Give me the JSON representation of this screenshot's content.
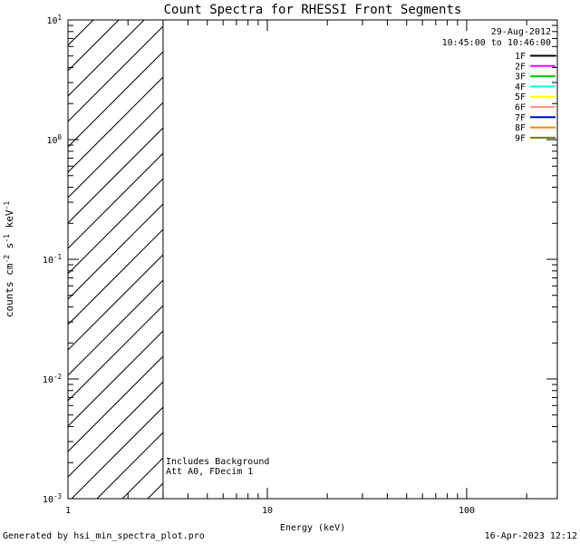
{
  "header": {
    "date": "29-Aug-2012",
    "interval": "10:45:00 to 10:46:00"
  },
  "footer": {
    "left": "Generated by hsi_min_spectra_plot.pro",
    "right": "16-Apr-2023 12:12"
  },
  "chart_data": {
    "type": "line",
    "title": "Count Spectra for RHESSI Front Segments",
    "xlabel": "Energy (keV)",
    "ylabel": "counts cm^-2 s^-1 keV^-1",
    "ylabel_segments": [
      {
        "t": "counts cm",
        "sup": false
      },
      {
        "t": "-2",
        "sup": true
      },
      {
        "t": " s",
        "sup": false
      },
      {
        "t": "-1",
        "sup": true
      },
      {
        "t": " keV",
        "sup": false
      },
      {
        "t": "-1",
        "sup": true
      }
    ],
    "x_log": true,
    "y_log": true,
    "xlim": [
      1,
      285
    ],
    "ylim": [
      0.001,
      10
    ],
    "grid": false,
    "x_major_ticks": [
      1,
      10,
      100
    ],
    "x_tick_labels": [
      "1",
      "10",
      "100"
    ],
    "y_tick_exponents": [
      1,
      0,
      -1,
      -2,
      -3
    ],
    "legend_position": "top-right",
    "series": [
      {
        "name": "1F",
        "color": "#000000",
        "values": []
      },
      {
        "name": "2F",
        "color": "#ff00ff",
        "values": []
      },
      {
        "name": "3F",
        "color": "#00cc00",
        "values": []
      },
      {
        "name": "4F",
        "color": "#00ffff",
        "values": []
      },
      {
        "name": "5F",
        "color": "#ffff00",
        "values": []
      },
      {
        "name": "6F",
        "color": "#ff9980",
        "values": []
      },
      {
        "name": "7F",
        "color": "#0000dd",
        "values": []
      },
      {
        "name": "8F",
        "color": "#ff8800",
        "values": []
      },
      {
        "name": "9F",
        "color": "#6f7f00",
        "values": []
      }
    ],
    "background_region": {
      "x_range": [
        1,
        3
      ],
      "style": "diagonal-hatch",
      "note": "hatched region bounded by vertical line; no spectra curves plotted"
    },
    "annotations": [
      "Includes Background",
      "Att A0, FDecim 1"
    ]
  }
}
